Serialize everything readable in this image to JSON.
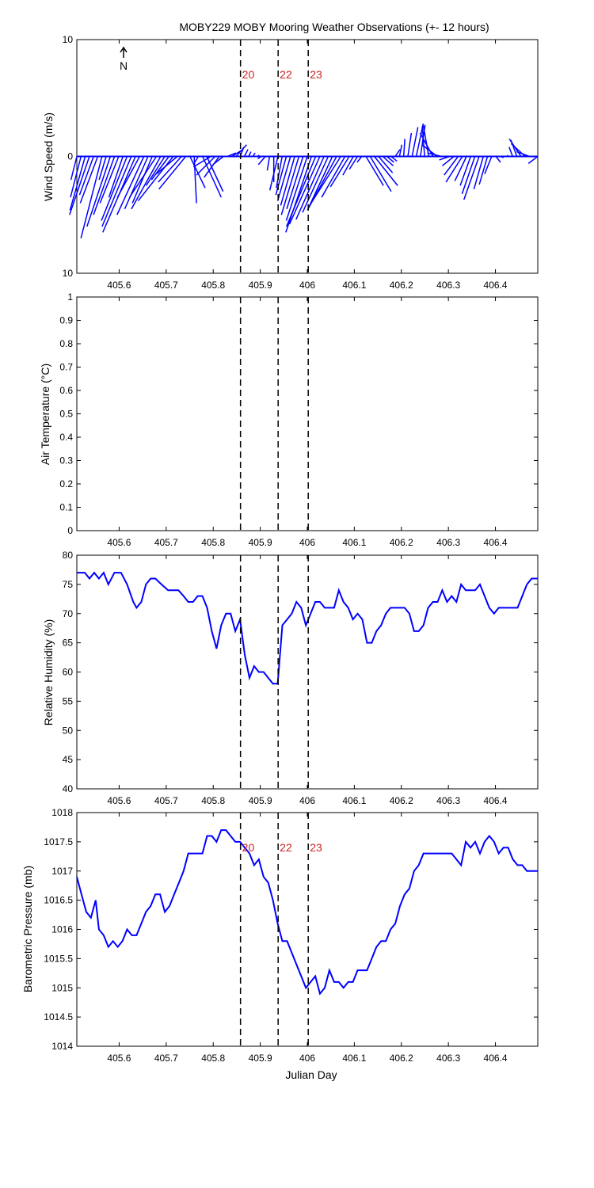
{
  "title": "MOBY229 MOBY Mooring Weather Observations (+- 12 hours)",
  "north_label": "N",
  "colors": {
    "data": "#0000ff",
    "event_line": "#000000",
    "event_label": "#cc2222",
    "axes": "#000000",
    "background": "#ffffff"
  },
  "events": [
    {
      "label": "20",
      "x": 405.858
    },
    {
      "label": "22",
      "x": 405.938
    },
    {
      "label": "23",
      "x": 406.002
    }
  ],
  "x_ticks": [
    "405.6",
    "405.7",
    "405.8",
    "405.9",
    "406",
    "406.1",
    "406.2",
    "406.3",
    "406.4"
  ],
  "chart_data": [
    {
      "type": "quiver",
      "ylabel": "Wind Speed (m/s)",
      "xlim": [
        405.51,
        406.49
      ],
      "ylim": [
        -10,
        10
      ],
      "y_ticks": [
        "10",
        "0",
        "10"
      ],
      "event_labels_shown": true,
      "north_arrow": true,
      "u": [
        -0.5,
        -0.9,
        -1.3,
        -1.7,
        -1.2,
        -1.5,
        -1.8,
        -0.6,
        -2.0,
        -1.8,
        -1.6,
        -1.2,
        -2.2,
        -2.5,
        -2.8,
        -1.9,
        -2.3,
        -2.0,
        -1.7,
        -2.3,
        -2.5,
        -1.6,
        -1.5,
        -3.0,
        -1.8,
        -2.0,
        -2.3,
        1.3,
        0.2,
        -0.3,
        1.6,
        1.4,
        -1.5,
        -1.6,
        -1.3,
        -0.9,
        0.7,
        0.8,
        0.9,
        0.3,
        0.3,
        0.2,
        0.2,
        0.2,
        -0.3,
        -0.6,
        -0.2,
        0.0,
        -0.7,
        -0.5,
        -0.9,
        -1.1,
        -1.2,
        -1.5,
        -1.4,
        -1.8,
        -2.2,
        -2.5,
        -2.6,
        -2.4,
        -2.2,
        -2.0,
        -2.5,
        -2.8,
        -2.0,
        -1.6,
        -0.9,
        -0.7,
        -0.4,
        1.5,
        1.8,
        2.0,
        1.2,
        0.9,
        0.6,
        0.5,
        0.4,
        0.2,
        0.1,
        0.3,
        0.5,
        0.6,
        0.4,
        -0.2,
        -0.5,
        -1.1,
        -1.3,
        -1.2,
        -0.8,
        -0.9,
        -1.0,
        -1.2,
        -1.4,
        -1.0,
        -0.9,
        -1.1,
        -1.3,
        -0.8,
        -0.7,
        -0.6,
        0.4,
        0.3,
        0.2,
        -0.1,
        -0.3,
        -0.5,
        -1.0,
        -1.2,
        -1.1,
        -0.9,
        -0.8
      ],
      "v": [
        -2.0,
        -3.5,
        -4.6,
        -5.0,
        -3.3,
        -4.0,
        -7.0,
        -2.0,
        -6.0,
        -5.0,
        -4.0,
        -3.5,
        -5.5,
        -6.0,
        -6.5,
        -3.5,
        -5.0,
        -4.5,
        -4.0,
        -3.5,
        -4.5,
        -2.5,
        -2.0,
        -3.8,
        -1.5,
        -2.2,
        -2.8,
        -2.7,
        -4.0,
        -0.5,
        -3.5,
        -3.0,
        -0.9,
        -1.6,
        -1.8,
        -0.7,
        0.3,
        0.5,
        1.0,
        0.8,
        0.6,
        0.4,
        0.3,
        0.1,
        -0.2,
        -0.7,
        -1.2,
        -2.2,
        -2.9,
        -2.7,
        -3.3,
        -3.8,
        -4.2,
        -5.0,
        -4.5,
        -5.5,
        -6.5,
        -6.0,
        -5.8,
        -5.4,
        -4.8,
        -4.3,
        -4.6,
        -4.4,
        -3.5,
        -2.6,
        -1.6,
        -1.1,
        -0.5,
        -2.5,
        -3.0,
        -2.5,
        -1.4,
        -0.8,
        -0.5,
        -0.4,
        0.6,
        1.0,
        1.5,
        2.0,
        2.5,
        2.8,
        2.7,
        2.6,
        2.8,
        2.0,
        1.0,
        0.3,
        0.0,
        -0.3,
        -0.8,
        -1.6,
        -2.2,
        -2.1,
        -2.5,
        -3.2,
        -3.7,
        -2.8,
        -2.4,
        -1.5,
        -0.5,
        -0.1,
        0.0,
        0.1,
        0.8,
        1.4,
        1.5,
        1.1,
        0.4,
        0.0,
        -0.6
      ]
    },
    {
      "type": "line",
      "ylabel": "Air Temperature (°C)",
      "xlim": [
        405.51,
        406.49
      ],
      "ylim": [
        0,
        1
      ],
      "y_ticks": [
        "0",
        "0.1",
        "0.2",
        "0.3",
        "0.4",
        "0.5",
        "0.6",
        "0.7",
        "0.8",
        "0.9",
        "1"
      ],
      "event_labels_shown": false,
      "x": [],
      "y": []
    },
    {
      "type": "line",
      "ylabel": "Relative Humidity (%)",
      "xlim": [
        405.51,
        406.49
      ],
      "ylim": [
        40,
        80
      ],
      "y_ticks": [
        "40",
        "45",
        "50",
        "55",
        "60",
        "65",
        "70",
        "75",
        "80"
      ],
      "event_labels_shown": false,
      "x": [
        405.51,
        405.527,
        405.537,
        405.547,
        405.557,
        405.567,
        405.577,
        405.59,
        405.604,
        405.617,
        405.63,
        405.637,
        405.647,
        405.657,
        405.667,
        405.677,
        405.69,
        405.704,
        405.715,
        405.726,
        405.737,
        405.747,
        405.757,
        405.767,
        405.777,
        405.787,
        405.797,
        405.807,
        405.817,
        405.827,
        405.837,
        405.847,
        405.857,
        405.867,
        405.877,
        405.887,
        405.897,
        405.907,
        405.917,
        405.927,
        405.937,
        405.947,
        405.957,
        405.967,
        405.977,
        405.987,
        405.997,
        406.007,
        406.017,
        406.027,
        406.037,
        406.047,
        406.057,
        406.067,
        406.077,
        406.087,
        406.097,
        406.107,
        406.117,
        406.127,
        406.137,
        406.147,
        406.157,
        406.167,
        406.177,
        406.187,
        406.197,
        406.207,
        406.217,
        406.227,
        406.237,
        406.247,
        406.257,
        406.267,
        406.277,
        406.287,
        406.297,
        406.307,
        406.317,
        406.327,
        406.337,
        406.347,
        406.357,
        406.367,
        406.377,
        406.387,
        406.397,
        406.407,
        406.417,
        406.427,
        406.437,
        406.447,
        406.457,
        406.467,
        406.477,
        406.487,
        406.49
      ],
      "y": [
        77,
        77,
        76,
        77,
        76,
        77,
        75,
        77,
        77,
        75,
        72,
        71,
        72,
        75,
        76,
        76,
        75,
        74,
        74,
        74,
        73,
        72,
        72,
        73,
        73,
        71,
        67,
        64,
        68,
        70,
        70,
        67,
        69,
        63,
        59,
        61,
        60,
        60,
        59,
        58,
        58,
        68,
        69,
        70,
        72,
        71,
        68,
        70,
        72,
        72,
        71,
        71,
        71,
        74,
        72,
        71,
        69,
        70,
        69,
        65,
        65,
        67,
        68,
        70,
        71,
        71,
        71,
        71,
        70,
        67,
        67,
        68,
        71,
        72,
        72,
        74,
        72,
        73,
        72,
        75,
        74,
        74,
        74,
        75,
        73,
        71,
        70,
        71,
        71,
        71,
        71,
        71,
        73,
        75,
        76,
        76,
        76
      ]
    },
    {
      "type": "line",
      "ylabel": "Barometric Pressure (mb)",
      "xlabel": "Julian Day",
      "xlim": [
        405.51,
        406.49
      ],
      "ylim": [
        1014,
        1018
      ],
      "y_ticks": [
        "1014",
        "1014.5",
        "1015",
        "1015.5",
        "1016",
        "1016.5",
        "1017",
        "1017.5",
        "1018"
      ],
      "event_labels_shown": true,
      "x": [
        405.51,
        405.52,
        405.53,
        405.54,
        405.55,
        405.557,
        405.567,
        405.577,
        405.587,
        405.597,
        405.607,
        405.617,
        405.627,
        405.637,
        405.647,
        405.657,
        405.667,
        405.677,
        405.687,
        405.697,
        405.707,
        405.717,
        405.727,
        405.737,
        405.747,
        405.757,
        405.767,
        405.777,
        405.787,
        405.797,
        405.807,
        405.817,
        405.827,
        405.837,
        405.847,
        405.857,
        405.867,
        405.877,
        405.887,
        405.897,
        405.907,
        405.917,
        405.927,
        405.937,
        405.947,
        405.957,
        405.967,
        405.977,
        405.987,
        405.997,
        406.007,
        406.017,
        406.027,
        406.037,
        406.047,
        406.057,
        406.067,
        406.077,
        406.087,
        406.097,
        406.107,
        406.117,
        406.127,
        406.137,
        406.147,
        406.157,
        406.167,
        406.177,
        406.187,
        406.197,
        406.207,
        406.217,
        406.227,
        406.237,
        406.247,
        406.257,
        406.267,
        406.277,
        406.287,
        406.297,
        406.307,
        406.317,
        406.327,
        406.337,
        406.347,
        406.357,
        406.367,
        406.377,
        406.387,
        406.397,
        406.407,
        406.417,
        406.427,
        406.437,
        406.447,
        406.457,
        406.467,
        406.477,
        406.487,
        406.49
      ],
      "y": [
        1016.9,
        1016.6,
        1016.3,
        1016.2,
        1016.5,
        1016.0,
        1015.9,
        1015.7,
        1015.8,
        1015.7,
        1015.8,
        1016.0,
        1015.9,
        1015.9,
        1016.1,
        1016.3,
        1016.4,
        1016.6,
        1016.6,
        1016.3,
        1016.4,
        1016.6,
        1016.8,
        1017.0,
        1017.3,
        1017.3,
        1017.3,
        1017.3,
        1017.6,
        1017.6,
        1017.5,
        1017.7,
        1017.7,
        1017.6,
        1017.5,
        1017.5,
        1017.4,
        1017.3,
        1017.1,
        1017.2,
        1016.9,
        1016.8,
        1016.5,
        1016.1,
        1015.8,
        1015.8,
        1015.6,
        1015.4,
        1015.2,
        1015.0,
        1015.1,
        1015.2,
        1014.9,
        1015.0,
        1015.3,
        1015.1,
        1015.1,
        1015.0,
        1015.1,
        1015.1,
        1015.3,
        1015.3,
        1015.3,
        1015.5,
        1015.7,
        1015.8,
        1015.8,
        1016.0,
        1016.1,
        1016.4,
        1016.6,
        1016.7,
        1017.0,
        1017.1,
        1017.3,
        1017.3,
        1017.3,
        1017.3,
        1017.3,
        1017.3,
        1017.3,
        1017.2,
        1017.1,
        1017.5,
        1017.4,
        1017.5,
        1017.3,
        1017.5,
        1017.6,
        1017.5,
        1017.3,
        1017.4,
        1017.4,
        1017.2,
        1017.1,
        1017.1,
        1017.0,
        1017.0,
        1017.0,
        1017.0
      ]
    }
  ]
}
